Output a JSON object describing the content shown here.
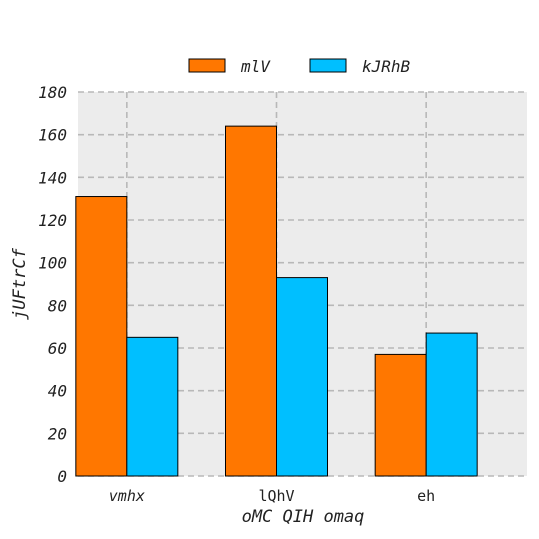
{
  "chart_data": {
    "type": "bar",
    "categories": [
      "vmhx",
      "lQhV",
      "eh"
    ],
    "category_italic": [
      true,
      false,
      false
    ],
    "series": [
      {
        "name": "mlV",
        "values": [
          131,
          164,
          57
        ],
        "color": "#ff7700"
      },
      {
        "name": "kJRhB",
        "values": [
          65,
          93,
          67
        ],
        "color": "#00bfff"
      }
    ],
    "xlabel": "oMC QIH omaq",
    "ylabel": "jUFtrCf",
    "ylim": [
      0,
      180
    ],
    "yticks": [
      0,
      20,
      40,
      60,
      80,
      100,
      120,
      140,
      160,
      180
    ],
    "grid": true,
    "legend_position": "top-center",
    "background_color": "#ececec",
    "grid_color": "#b8b8b8"
  }
}
